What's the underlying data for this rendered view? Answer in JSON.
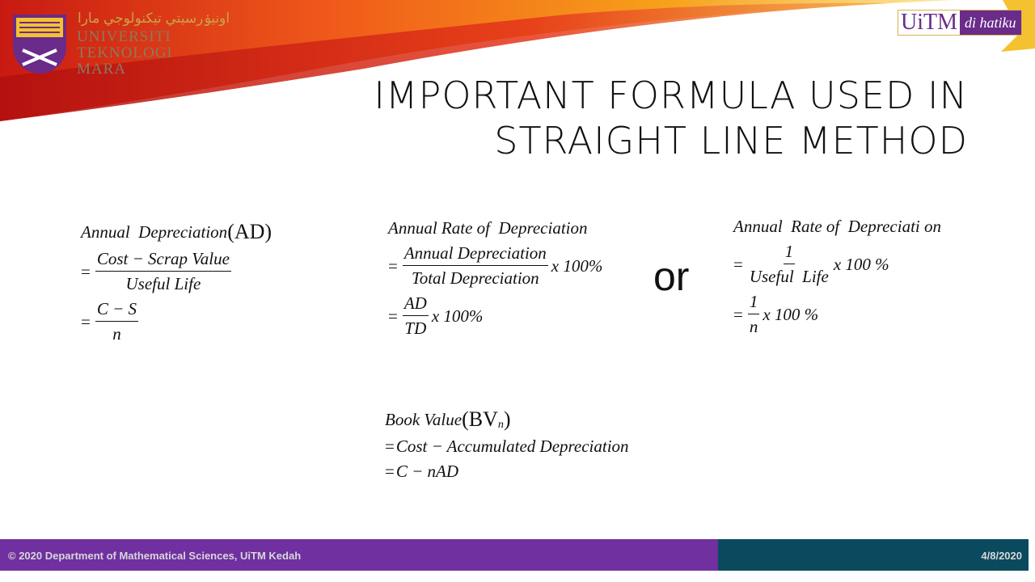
{
  "header": {
    "logo": {
      "jawi": "اونيۏرسيتي تيكنولوجي مارا",
      "line1": "UNIVERSITI",
      "line2": "TEKNOLOGI",
      "line3": "MARA"
    },
    "badge": {
      "brand": "UiTM",
      "tagline": "di hatiku"
    }
  },
  "title": {
    "line1": "IMPORTANT FORMULA USED IN",
    "line2": "STRAIGHT LINE METHOD"
  },
  "formulas": [
    {
      "heading": "Annual  Depreciation",
      "heading_suffix": "(AD)",
      "steps": [
        {
          "eq": "=",
          "numerator": "Cost − Scrap Value",
          "denominator": "Useful Life"
        },
        {
          "eq": "=",
          "numerator": "C − S",
          "denominator": "n"
        }
      ]
    },
    {
      "heading": "Annual Rate of  Depreciation",
      "steps": [
        {
          "eq": "=",
          "numerator": "Annual Depreciation",
          "denominator": "Total Depreciation",
          "suffix": "x 100%"
        },
        {
          "eq": "=",
          "numerator": "AD",
          "denominator": "TD",
          "suffix": "x 100%"
        }
      ]
    },
    {
      "heading": "Annual  Rate of  Depreciati on",
      "steps": [
        {
          "eq": "=",
          "numerator": "1",
          "denominator": "Useful  Life",
          "suffix": "x 100 %"
        },
        {
          "eq": "=",
          "numerator": "1",
          "denominator": "n",
          "suffix": "x 100 %"
        }
      ]
    },
    {
      "heading": "Book Value",
      "heading_suffix": "(BV",
      "heading_subscript": "n",
      "heading_close": ")",
      "steps": [
        {
          "eq": "=",
          "text": "Cost − Accumulated Depreciation"
        },
        {
          "eq": "=",
          "text": "C − nAD"
        }
      ]
    }
  ],
  "connector": "or",
  "footer": {
    "left": "© 2020 Department of Mathematical Sciences, UiTM Kedah",
    "right": "4/8/2020"
  }
}
